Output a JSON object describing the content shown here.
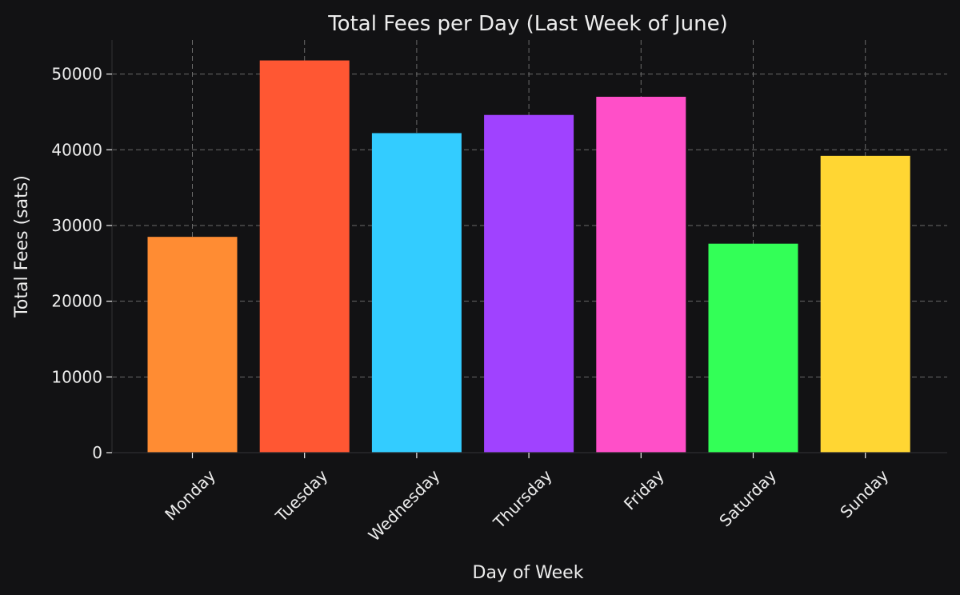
{
  "chart_data": {
    "type": "bar",
    "title": "Total Fees per Day (Last Week of June)",
    "xlabel": "Day of Week",
    "ylabel": "Total Fees (sats)",
    "categories": [
      "Monday",
      "Tuesday",
      "Wednesday",
      "Thursday",
      "Friday",
      "Saturday",
      "Sunday"
    ],
    "values": [
      28500,
      51800,
      42200,
      44600,
      47000,
      27600,
      39200
    ],
    "colors": [
      "#ff8c33",
      "#ff5733",
      "#33ccff",
      "#a042ff",
      "#ff4fc8",
      "#33ff57",
      "#ffd633"
    ],
    "ylim": [
      0,
      54500
    ],
    "yticks": [
      0,
      10000,
      20000,
      30000,
      40000,
      50000
    ],
    "ytick_labels": [
      "0",
      "10000",
      "20000",
      "30000",
      "40000",
      "50000"
    ],
    "grid": true,
    "legend": "none",
    "background_color": "#121214",
    "text_color": "#ededed",
    "grid_color": "#6a6a6a"
  }
}
